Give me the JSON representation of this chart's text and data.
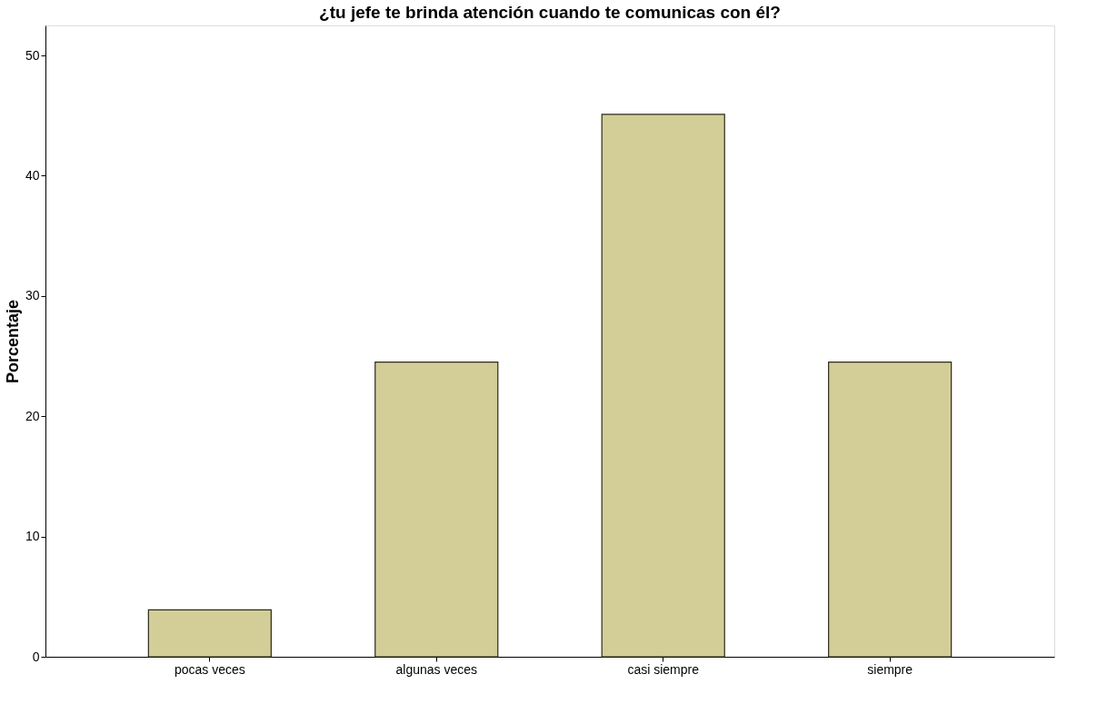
{
  "chart_data": {
    "type": "bar",
    "title": "¿tu jefe te brinda atención cuando te comunicas con él?",
    "ylabel": "Porcentaje",
    "categories": [
      "pocas veces",
      "algunas veces",
      "casi siempre",
      "siempre"
    ],
    "values": [
      3.9,
      24.5,
      45.1,
      24.5
    ],
    "color": "#d3ce97",
    "ylim": [
      0,
      52.5
    ],
    "yticks": [
      0,
      10,
      20,
      30,
      40,
      50
    ],
    "grid": false
  }
}
